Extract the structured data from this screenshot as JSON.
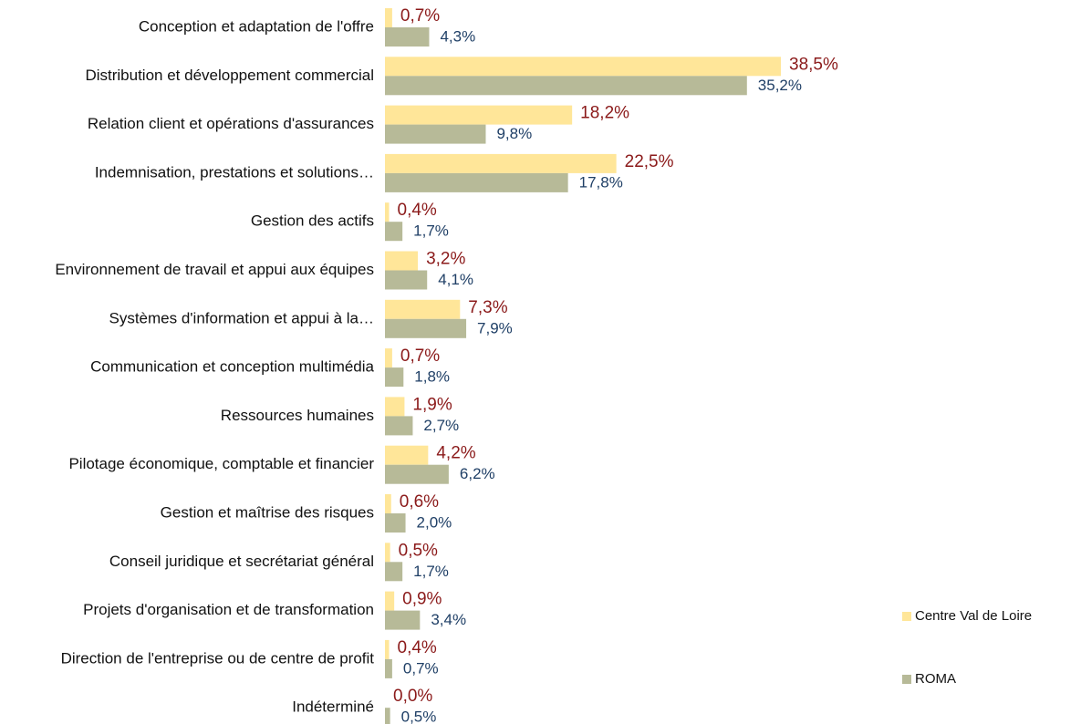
{
  "chart_data": {
    "type": "bar",
    "orientation": "horizontal",
    "categories": [
      "Conception et adaptation de l'offre",
      "Distribution et développement commercial",
      "Relation client et opérations d'assurances",
      "Indemnisation, prestations et solutions…",
      "Gestion des actifs",
      "Environnement de travail et appui aux équipes",
      "Systèmes d'information et appui à la…",
      "Communication et conception multimédia",
      "Ressources humaines",
      "Pilotage économique, comptable et financier",
      "Gestion et maîtrise des risques",
      "Conseil juridique et secrétariat général",
      "Projets d'organisation et de transformation",
      "Direction de l'entreprise ou de centre de profit",
      "Indéterminé"
    ],
    "series": [
      {
        "name": "Centre Val de Loire",
        "color": "#ffe699",
        "label_color": "#8b1a1a",
        "values": [
          0.7,
          38.5,
          18.2,
          22.5,
          0.4,
          3.2,
          7.3,
          0.7,
          1.9,
          4.2,
          0.6,
          0.5,
          0.9,
          0.4,
          0.0
        ],
        "value_labels": [
          "0,7%",
          "38,5%",
          "18,2%",
          "22,5%",
          "0,4%",
          "3,2%",
          "7,3%",
          "0,7%",
          "1,9%",
          "4,2%",
          "0,6%",
          "0,5%",
          "0,9%",
          "0,4%",
          "0,0%"
        ]
      },
      {
        "name": "ROMA",
        "color": "#b7ba98",
        "label_color": "#1f3f66",
        "values": [
          4.3,
          35.2,
          9.8,
          17.8,
          1.7,
          4.1,
          7.9,
          1.8,
          2.7,
          6.2,
          2.0,
          1.7,
          3.4,
          0.7,
          0.5
        ],
        "value_labels": [
          "4,3%",
          "35,2%",
          "9,8%",
          "17,8%",
          "1,7%",
          "4,1%",
          "7,9%",
          "1,8%",
          "2,7%",
          "6,2%",
          "2,0%",
          "1,7%",
          "3,4%",
          "0,7%",
          "0,5%"
        ]
      }
    ],
    "legend": "right"
  }
}
